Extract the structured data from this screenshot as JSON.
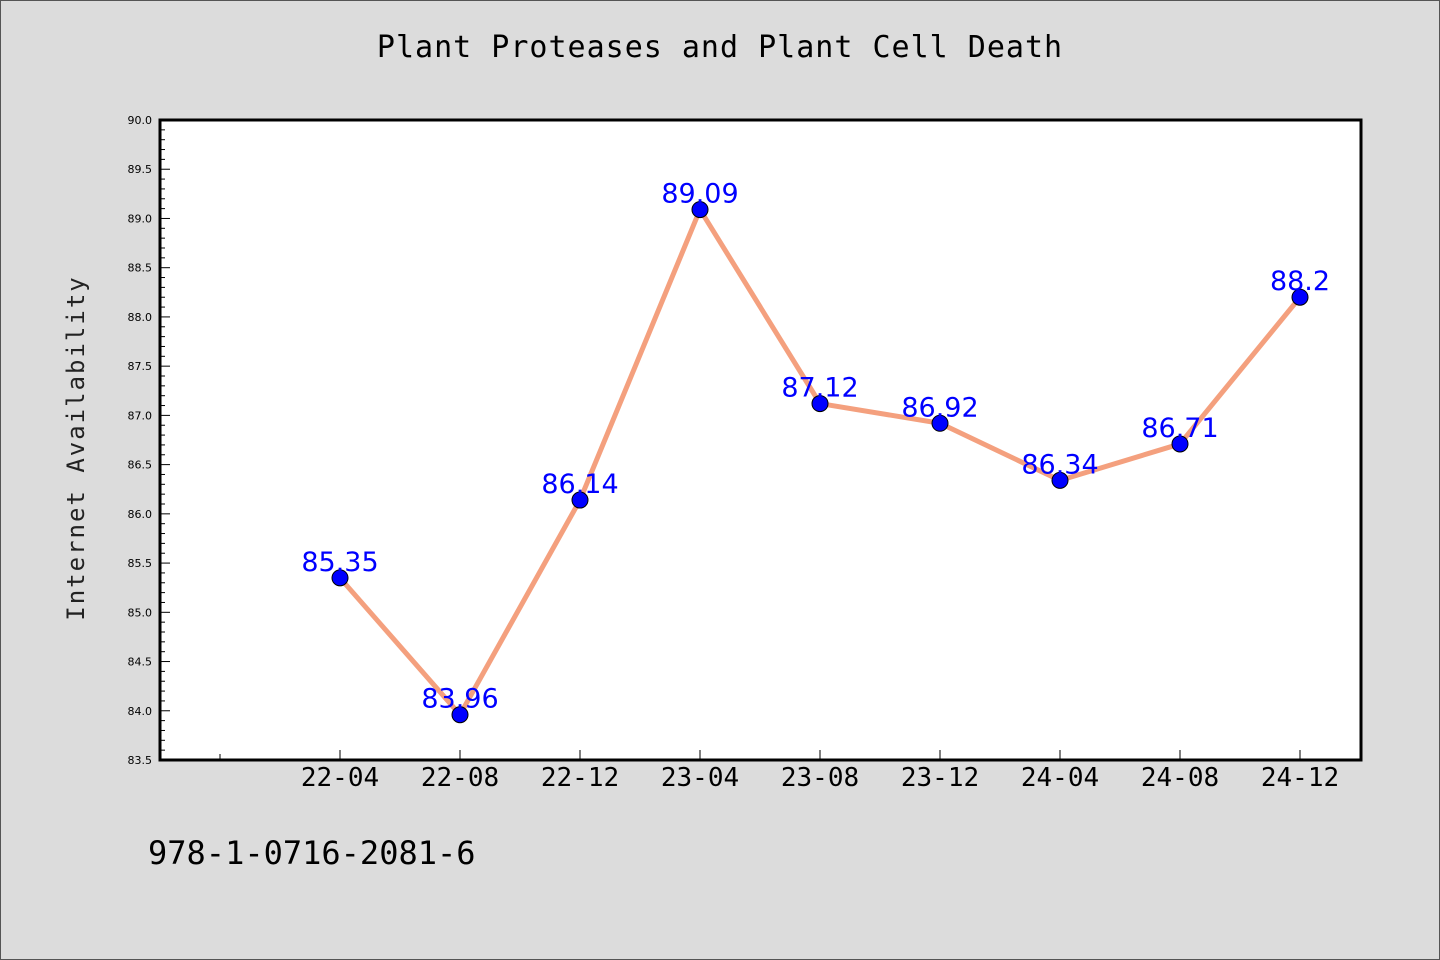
{
  "page": {
    "title": "Plant Proteases and Plant Cell Death",
    "footer_isbn": "978-1-0716-2081-6"
  },
  "colors": {
    "background": "#dcdcdc",
    "plot_background": "#ffffff",
    "line": "#f4a07e",
    "marker": "#0000ff",
    "data_label": "#0000ff"
  },
  "chart_data": {
    "type": "line",
    "title": "Plant Proteases and Plant Cell Death",
    "xlabel": "",
    "ylabel": "Internet Availability",
    "categories": [
      "22-04",
      "22-08",
      "22-12",
      "23-04",
      "23-08",
      "23-12",
      "24-04",
      "24-08",
      "24-12"
    ],
    "series": [
      {
        "values": [
          85.35,
          83.96,
          86.14,
          89.09,
          87.12,
          86.92,
          86.34,
          86.71,
          88.2
        ],
        "labels": [
          "85.35",
          "83.96",
          "86.14",
          "89.09",
          "87.12",
          "86.92",
          "86.34",
          "86.71",
          "88.2"
        ]
      }
    ],
    "ylim": [
      83.5,
      90.0
    ],
    "yticks": [
      "83.5",
      "84.0",
      "84.5",
      "85.0",
      "85.5",
      "86.0",
      "86.5",
      "87.0",
      "87.5",
      "88.0",
      "88.5",
      "89.0",
      "89.5",
      "90.0"
    ],
    "grid": false,
    "legend": "none",
    "markers": true,
    "data_labels": true
  }
}
